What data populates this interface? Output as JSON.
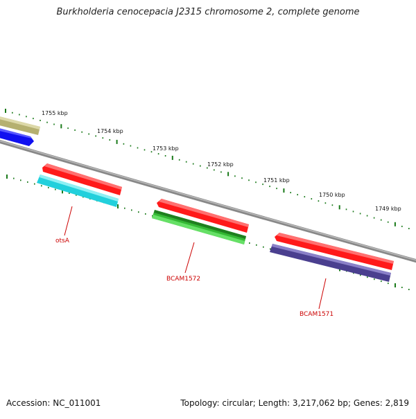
{
  "title": "Burkholderia cenocepacia J2315 chromosome 2, complete genome",
  "footer": {
    "accession": "Accession: NC_011001",
    "summary": "Topology: circular; Length: 3,217,062 bp; Genes: 2,819"
  },
  "ticks": [
    {
      "label": "1755 kbp"
    },
    {
      "label": "1754 kbp"
    },
    {
      "label": "1753 kbp"
    },
    {
      "label": "1752 kbp"
    },
    {
      "label": "1751 kbp"
    },
    {
      "label": "1750 kbp"
    },
    {
      "label": "1749 kbp"
    }
  ],
  "gene_labels": {
    "otsA": "otsA",
    "bcam1572": "BCAM1572",
    "bcam1571": "BCAM1571"
  },
  "colors": {
    "backbone": "#7a7a7a",
    "tick": "#1a7a1a",
    "gene_label": "#cc0000",
    "red_feature": "#ff1a1a",
    "cyan_feature": "#22d0dc",
    "green_feature": "#33b833",
    "purple_feature": "#4a3f8f",
    "blue_feature": "#1010f0",
    "khaki_feature": "#b5b070"
  }
}
